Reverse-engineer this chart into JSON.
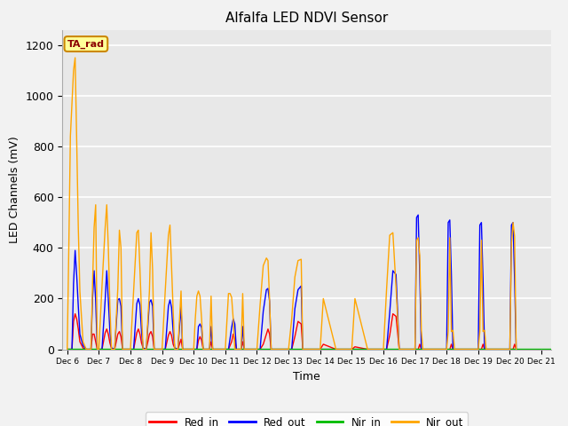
{
  "title": "Alfalfa LED NDVI Sensor",
  "ylabel": "LED Channels (mV)",
  "xlabel": "Time",
  "annotation": "TA_rad",
  "ylim": [
    0,
    1260
  ],
  "xlim": [
    5.85,
    21.3
  ],
  "colors": {
    "Red_in": "#ff0000",
    "Red_out": "#0000ff",
    "Nir_in": "#00bb00",
    "Nir_out": "#ffa500"
  },
  "x_ticks": [
    6,
    7,
    8,
    9,
    10,
    11,
    12,
    13,
    14,
    15,
    16,
    17,
    18,
    19,
    20,
    21
  ],
  "x_tick_labels": [
    "Dec 6",
    "Dec 7",
    "Dec 8",
    "Dec 9",
    "Dec 10",
    "Dec 11",
    "Dec 12",
    "Dec 13",
    "Dec 14",
    "Dec 15",
    "Dec 16",
    "Dec 17",
    "Dec 18",
    "Dec 19",
    "Dec 20",
    "Dec 21"
  ],
  "series": {
    "Red_in": {
      "x": [
        6.0,
        6.15,
        6.2,
        6.25,
        6.3,
        6.35,
        6.4,
        6.5,
        6.6,
        6.75,
        6.8,
        6.85,
        6.9,
        6.95,
        7.0,
        7.1,
        7.2,
        7.25,
        7.3,
        7.35,
        7.4,
        7.5,
        7.6,
        7.65,
        7.7,
        7.75,
        8.0,
        8.1,
        8.2,
        8.25,
        8.3,
        8.35,
        8.4,
        8.5,
        8.6,
        8.65,
        8.7,
        8.75,
        9.0,
        9.1,
        9.2,
        9.25,
        9.3,
        9.35,
        9.4,
        9.5,
        9.6,
        9.65,
        10.0,
        10.1,
        10.15,
        10.2,
        10.25,
        10.3,
        10.5,
        10.55,
        10.6,
        11.0,
        11.1,
        11.2,
        11.25,
        11.3,
        11.35,
        11.5,
        11.55,
        11.6,
        12.0,
        12.1,
        12.2,
        12.3,
        12.35,
        12.4,
        12.45,
        13.0,
        13.1,
        13.2,
        13.3,
        13.4,
        13.45,
        14.0,
        14.1,
        14.5,
        15.0,
        15.1,
        15.5,
        16.0,
        16.1,
        16.2,
        16.3,
        16.4,
        16.5,
        17.0,
        17.1,
        17.15,
        17.2,
        18.0,
        18.1,
        18.15,
        18.2,
        19.0,
        19.1,
        19.15,
        19.2,
        20.0,
        20.1,
        20.15,
        20.2
      ],
      "y": [
        0,
        0,
        110,
        140,
        120,
        80,
        30,
        5,
        0,
        0,
        60,
        60,
        30,
        0,
        0,
        0,
        65,
        80,
        60,
        25,
        5,
        0,
        60,
        70,
        50,
        0,
        0,
        0,
        65,
        80,
        60,
        25,
        5,
        0,
        60,
        70,
        50,
        0,
        0,
        0,
        55,
        70,
        55,
        20,
        5,
        0,
        40,
        0,
        0,
        0,
        35,
        50,
        35,
        0,
        0,
        30,
        0,
        0,
        0,
        30,
        60,
        40,
        0,
        0,
        30,
        0,
        0,
        0,
        20,
        60,
        80,
        60,
        0,
        0,
        0,
        50,
        110,
        100,
        0,
        0,
        20,
        0,
        0,
        10,
        0,
        0,
        0,
        55,
        140,
        130,
        0,
        0,
        0,
        20,
        0,
        0,
        0,
        20,
        0,
        0,
        0,
        20,
        0,
        0,
        0,
        20,
        0
      ]
    },
    "Red_out": {
      "x": [
        6.0,
        6.15,
        6.2,
        6.25,
        6.3,
        6.35,
        6.4,
        6.5,
        6.6,
        6.75,
        6.8,
        6.85,
        6.9,
        6.95,
        7.0,
        7.1,
        7.2,
        7.25,
        7.3,
        7.35,
        7.4,
        7.5,
        7.6,
        7.65,
        7.7,
        7.75,
        8.0,
        8.1,
        8.2,
        8.25,
        8.3,
        8.35,
        8.4,
        8.5,
        8.6,
        8.65,
        8.7,
        8.75,
        9.0,
        9.1,
        9.2,
        9.25,
        9.3,
        9.35,
        9.4,
        9.5,
        9.6,
        9.65,
        10.0,
        10.1,
        10.15,
        10.2,
        10.25,
        10.3,
        10.5,
        10.55,
        10.6,
        11.0,
        11.1,
        11.2,
        11.25,
        11.3,
        11.35,
        11.5,
        11.55,
        11.6,
        12.0,
        12.1,
        12.2,
        12.3,
        12.35,
        12.4,
        12.45,
        13.0,
        13.1,
        13.2,
        13.3,
        13.4,
        13.45,
        16.0,
        16.1,
        16.2,
        16.3,
        16.4,
        16.5,
        17.0,
        17.05,
        17.1,
        17.15,
        17.2,
        18.0,
        18.05,
        18.1,
        18.15,
        18.2,
        19.0,
        19.05,
        19.1,
        19.15,
        19.2,
        20.0,
        20.05,
        20.1,
        20.15,
        20.2
      ],
      "y": [
        0,
        0,
        260,
        390,
        290,
        170,
        60,
        15,
        0,
        0,
        200,
        310,
        190,
        0,
        0,
        0,
        195,
        310,
        195,
        70,
        5,
        0,
        195,
        200,
        170,
        0,
        0,
        0,
        180,
        200,
        175,
        70,
        5,
        0,
        185,
        195,
        170,
        0,
        0,
        0,
        170,
        195,
        165,
        70,
        5,
        0,
        170,
        0,
        0,
        0,
        90,
        100,
        85,
        0,
        0,
        90,
        0,
        0,
        0,
        85,
        120,
        100,
        0,
        0,
        90,
        0,
        0,
        0,
        150,
        235,
        240,
        190,
        0,
        0,
        0,
        160,
        235,
        250,
        0,
        0,
        0,
        145,
        310,
        295,
        0,
        0,
        520,
        530,
        295,
        0,
        0,
        500,
        510,
        295,
        0,
        0,
        490,
        500,
        280,
        0,
        0,
        490,
        500,
        275,
        0
      ]
    },
    "Nir_in": {
      "x": [
        6.0,
        21.3
      ],
      "y": [
        3,
        3
      ]
    },
    "Nir_out": {
      "x": [
        6.0,
        6.05,
        6.1,
        6.15,
        6.2,
        6.25,
        6.3,
        6.35,
        6.4,
        6.5,
        6.6,
        6.75,
        6.8,
        6.85,
        6.9,
        6.95,
        7.0,
        7.1,
        7.2,
        7.25,
        7.3,
        7.35,
        7.4,
        7.5,
        7.6,
        7.65,
        7.7,
        7.75,
        8.0,
        8.1,
        8.2,
        8.25,
        8.3,
        8.35,
        8.4,
        8.5,
        8.6,
        8.65,
        8.7,
        8.75,
        9.0,
        9.1,
        9.2,
        9.25,
        9.3,
        9.35,
        9.4,
        9.5,
        9.6,
        9.65,
        10.0,
        10.05,
        10.1,
        10.15,
        10.2,
        10.25,
        10.3,
        10.5,
        10.55,
        10.6,
        11.0,
        11.05,
        11.1,
        11.15,
        11.2,
        11.25,
        11.3,
        11.5,
        11.55,
        11.6,
        12.0,
        12.1,
        12.2,
        12.3,
        12.35,
        12.4,
        12.45,
        13.0,
        13.1,
        13.2,
        13.3,
        13.4,
        13.45,
        14.0,
        14.1,
        14.5,
        15.0,
        15.1,
        15.5,
        16.0,
        16.1,
        16.2,
        16.3,
        16.4,
        16.5,
        17.0,
        17.05,
        17.1,
        17.15,
        17.2,
        17.25,
        18.0,
        18.05,
        18.1,
        18.15,
        18.2,
        18.25,
        19.0,
        19.05,
        19.1,
        19.15,
        19.2,
        19.25,
        20.0,
        20.05,
        20.1,
        20.15,
        20.2
      ],
      "y": [
        0,
        400,
        840,
        970,
        1100,
        1150,
        820,
        480,
        230,
        30,
        0,
        0,
        250,
        480,
        570,
        0,
        0,
        250,
        480,
        570,
        400,
        170,
        0,
        0,
        240,
        470,
        400,
        0,
        0,
        230,
        460,
        470,
        315,
        145,
        0,
        0,
        230,
        460,
        315,
        0,
        0,
        230,
        450,
        490,
        325,
        155,
        0,
        0,
        230,
        0,
        0,
        120,
        210,
        230,
        210,
        120,
        0,
        0,
        210,
        0,
        0,
        110,
        220,
        220,
        205,
        120,
        0,
        0,
        220,
        0,
        0,
        175,
        330,
        360,
        350,
        195,
        0,
        0,
        120,
        285,
        350,
        355,
        0,
        0,
        200,
        0,
        0,
        200,
        0,
        0,
        235,
        450,
        460,
        245,
        0,
        0,
        430,
        440,
        370,
        75,
        0,
        0,
        70,
        440,
        70,
        75,
        0,
        0,
        70,
        430,
        70,
        75,
        0,
        0,
        420,
        500,
        445,
        0
      ]
    }
  }
}
